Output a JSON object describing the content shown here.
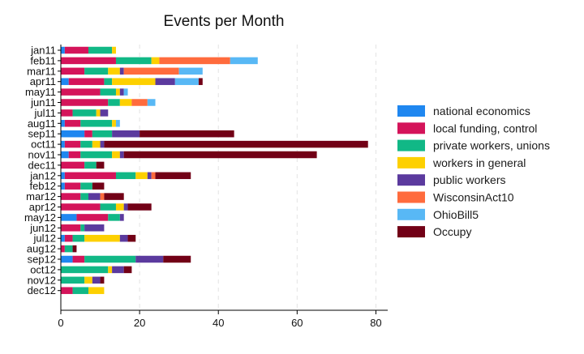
{
  "chart_data": {
    "type": "bar",
    "orientation": "horizontal",
    "stacked": true,
    "title": "Events per Month",
    "xlabel": "",
    "ylabel": "",
    "xlim": [
      0,
      83
    ],
    "xticks": [
      0,
      20,
      40,
      60,
      80
    ],
    "grid": "vertical-dashed",
    "legend_position": "right",
    "categories": [
      "jan11",
      "feb11",
      "mar11",
      "apr11",
      "may11",
      "jun11",
      "jul11",
      "aug11",
      "sep11",
      "oct11",
      "nov11",
      "dec11",
      "jan12",
      "feb12",
      "mar12",
      "apr12",
      "may12",
      "jun12",
      "jul12",
      "aug12",
      "sep12",
      "oct12",
      "nov12",
      "dec12"
    ],
    "series": [
      {
        "name": "national economics",
        "color": "#1f87f0",
        "values": [
          1,
          0,
          0,
          2,
          0,
          0,
          0,
          1,
          6,
          1,
          2,
          0,
          1,
          1,
          0,
          0,
          4,
          0,
          1,
          0,
          3,
          0,
          0,
          0
        ]
      },
      {
        "name": "local funding, control",
        "color": "#d4145a",
        "values": [
          6,
          14,
          6,
          9,
          10,
          12,
          3,
          4,
          2,
          4,
          3,
          6,
          13,
          4,
          5,
          10,
          8,
          5,
          2,
          1,
          3,
          0,
          0,
          3
        ]
      },
      {
        "name": "private workers, unions",
        "color": "#11b886",
        "values": [
          6,
          9,
          6,
          2,
          4,
          3,
          6,
          8,
          5,
          3,
          8,
          3,
          5,
          3,
          2,
          4,
          3,
          1,
          3,
          2,
          13,
          12,
          6,
          4
        ]
      },
      {
        "name": "workers in general",
        "color": "#fdd000",
        "values": [
          1,
          2,
          3,
          11,
          1,
          3,
          1,
          1,
          0,
          2,
          2,
          0,
          3,
          0,
          0,
          2,
          0,
          0,
          9,
          0,
          0,
          1,
          2,
          4
        ]
      },
      {
        "name": "public workers",
        "color": "#5b3a9e",
        "values": [
          0,
          0,
          1,
          5,
          1,
          0,
          2,
          0,
          7,
          1,
          1,
          0,
          1,
          0,
          3,
          1,
          1,
          5,
          2,
          0,
          7,
          3,
          2,
          0
        ]
      },
      {
        "name": "WisconsinAct10",
        "color": "#ff6b3d",
        "values": [
          0,
          18,
          14,
          0,
          0,
          4,
          0,
          0,
          0,
          0,
          0,
          0,
          1,
          0,
          1,
          0,
          0,
          0,
          0,
          0,
          0,
          0,
          0,
          0
        ]
      },
      {
        "name": "OhioBill5",
        "color": "#58b8f5",
        "values": [
          0,
          7,
          6,
          6,
          1,
          2,
          0,
          1,
          0,
          0,
          0,
          0,
          0,
          0,
          0,
          0,
          0,
          0,
          0,
          0,
          0,
          0,
          0,
          0
        ]
      },
      {
        "name": "Occupy",
        "color": "#720016",
        "values": [
          0,
          0,
          0,
          1,
          0,
          0,
          0,
          0,
          24,
          67,
          49,
          2,
          9,
          3,
          5,
          6,
          0,
          0,
          2,
          1,
          7,
          2,
          1,
          0
        ]
      }
    ]
  }
}
